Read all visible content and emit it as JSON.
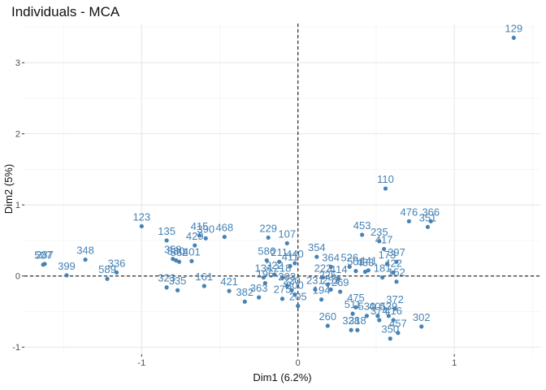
{
  "chart_data": {
    "type": "scatter",
    "title": "Individuals - MCA",
    "xlabel": "Dim1 (6.2%)",
    "ylabel": "Dim2 (5%)",
    "xlim": [
      -1.75,
      1.55
    ],
    "ylim": [
      -1.1,
      3.55
    ],
    "x_ticks": [
      -1,
      0,
      1
    ],
    "y_ticks": [
      -1,
      0,
      1,
      2,
      3
    ],
    "grid": true,
    "reference_lines": {
      "x": 0,
      "y": 0,
      "style": "dashed"
    },
    "point_color": "#4682b4",
    "points": [
      {
        "label": "129",
        "x": 1.38,
        "y": 3.35
      },
      {
        "label": "110",
        "x": 0.56,
        "y": 1.23
      },
      {
        "label": "476",
        "x": 0.71,
        "y": 0.77
      },
      {
        "label": "366",
        "x": 0.85,
        "y": 0.77
      },
      {
        "label": "351",
        "x": 0.83,
        "y": 0.69
      },
      {
        "label": "123",
        "x": -1.0,
        "y": 0.7
      },
      {
        "label": "453",
        "x": 0.41,
        "y": 0.58
      },
      {
        "label": "235",
        "x": 0.52,
        "y": 0.49
      },
      {
        "label": "135",
        "x": -0.84,
        "y": 0.5
      },
      {
        "label": "429",
        "x": -0.66,
        "y": 0.43
      },
      {
        "label": "390",
        "x": -0.59,
        "y": 0.53
      },
      {
        "label": "468",
        "x": -0.47,
        "y": 0.55
      },
      {
        "label": "415",
        "x": -0.63,
        "y": 0.57
      },
      {
        "label": "229",
        "x": -0.19,
        "y": 0.54
      },
      {
        "label": "107",
        "x": -0.07,
        "y": 0.46
      },
      {
        "label": "287",
        "x": -1.62,
        "y": 0.17
      },
      {
        "label": "507",
        "x": -1.63,
        "y": 0.16
      },
      {
        "label": "348",
        "x": -1.36,
        "y": 0.23
      },
      {
        "label": "399",
        "x": -1.48,
        "y": 0.01
      },
      {
        "label": "589",
        "x": -1.22,
        "y": -0.04
      },
      {
        "label": "336",
        "x": -1.16,
        "y": 0.05
      },
      {
        "label": "359",
        "x": -0.8,
        "y": 0.24
      },
      {
        "label": "580",
        "x": -0.78,
        "y": 0.22
      },
      {
        "label": "562",
        "x": -0.76,
        "y": 0.2
      },
      {
        "label": "401",
        "x": -0.68,
        "y": 0.21
      },
      {
        "label": "323",
        "x": -0.84,
        "y": -0.16
      },
      {
        "label": "335",
        "x": -0.77,
        "y": -0.2
      },
      {
        "label": "161",
        "x": -0.6,
        "y": -0.14
      },
      {
        "label": "421",
        "x": -0.44,
        "y": -0.21
      },
      {
        "label": "382",
        "x": -0.34,
        "y": -0.36
      },
      {
        "label": "363",
        "x": -0.25,
        "y": -0.3
      },
      {
        "label": "586",
        "x": -0.2,
        "y": 0.22
      },
      {
        "label": "211",
        "x": -0.12,
        "y": 0.2
      },
      {
        "label": "411",
        "x": -0.05,
        "y": 0.14
      },
      {
        "label": "440",
        "x": -0.02,
        "y": 0.18
      },
      {
        "label": "354",
        "x": 0.12,
        "y": 0.27
      },
      {
        "label": "364",
        "x": 0.21,
        "y": 0.13
      },
      {
        "label": "526",
        "x": 0.33,
        "y": 0.13
      },
      {
        "label": "433",
        "x": 0.43,
        "y": 0.06
      },
      {
        "label": "417",
        "x": 0.55,
        "y": 0.38
      },
      {
        "label": "397",
        "x": 0.63,
        "y": 0.2
      },
      {
        "label": "422",
        "x": 0.61,
        "y": 0.05
      },
      {
        "label": "173",
        "x": 0.57,
        "y": 0.17
      },
      {
        "label": "441",
        "x": 0.45,
        "y": 0.08
      },
      {
        "label": "501",
        "x": 0.37,
        "y": 0.07
      },
      {
        "label": "181",
        "x": 0.54,
        "y": -0.02
      },
      {
        "label": "152",
        "x": 0.63,
        "y": -0.08
      },
      {
        "label": "134",
        "x": -0.22,
        "y": -0.02
      },
      {
        "label": "196",
        "x": -0.21,
        "y": -0.1
      },
      {
        "label": "322",
        "x": -0.15,
        "y": 0.02
      },
      {
        "label": "218",
        "x": -0.1,
        "y": -0.02
      },
      {
        "label": "203",
        "x": -0.07,
        "y": -0.14
      },
      {
        "label": "220",
        "x": -0.04,
        "y": -0.2
      },
      {
        "label": "275",
        "x": -0.1,
        "y": -0.32
      },
      {
        "label": "205",
        "x": 0.0,
        "y": -0.42
      },
      {
        "label": "300",
        "x": -0.02,
        "y": -0.26
      },
      {
        "label": "231",
        "x": 0.11,
        "y": -0.19
      },
      {
        "label": "194",
        "x": 0.15,
        "y": -0.33
      },
      {
        "label": "222",
        "x": 0.16,
        "y": -0.02
      },
      {
        "label": "225",
        "x": 0.19,
        "y": -0.12
      },
      {
        "label": "414",
        "x": 0.26,
        "y": -0.04
      },
      {
        "label": "251",
        "x": 0.21,
        "y": -0.19
      },
      {
        "label": "269",
        "x": 0.27,
        "y": -0.22
      },
      {
        "label": "260",
        "x": 0.19,
        "y": -0.7
      },
      {
        "label": "475",
        "x": 0.37,
        "y": -0.44
      },
      {
        "label": "511",
        "x": 0.35,
        "y": -0.53
      },
      {
        "label": "530",
        "x": 0.44,
        "y": -0.56
      },
      {
        "label": "401b",
        "x": 0.51,
        "y": -0.56
      },
      {
        "label": "372",
        "x": 0.62,
        "y": -0.46
      },
      {
        "label": "539",
        "x": 0.58,
        "y": -0.56
      },
      {
        "label": "374",
        "x": 0.52,
        "y": -0.62
      },
      {
        "label": "416",
        "x": 0.61,
        "y": -0.62
      },
      {
        "label": "302",
        "x": 0.79,
        "y": -0.71
      },
      {
        "label": "328",
        "x": 0.34,
        "y": -0.76
      },
      {
        "label": "318",
        "x": 0.38,
        "y": -0.76
      },
      {
        "label": "457",
        "x": 0.64,
        "y": -0.8
      },
      {
        "label": "350",
        "x": 0.59,
        "y": -0.88
      }
    ]
  }
}
